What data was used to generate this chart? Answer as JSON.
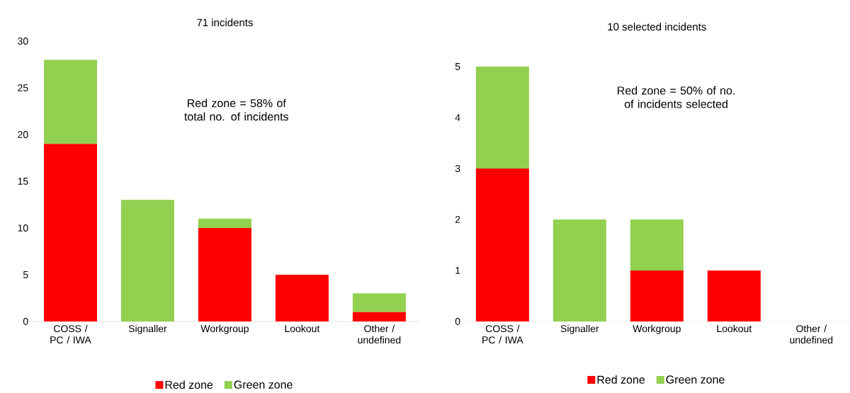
{
  "chart_data": [
    {
      "type": "bar",
      "title": "71 incidents",
      "stacked": true,
      "legend": "bottom",
      "categories": [
        "COSS / PC / IWA",
        "Signaller",
        "Workgroup",
        "Lookout",
        "Other / undefined"
      ],
      "ylim": [
        0,
        30
      ],
      "yticks": [
        0,
        5,
        10,
        15,
        20,
        25,
        30
      ],
      "annotations": [
        "Red zone = 58% of total no. of incidents"
      ],
      "series": [
        {
          "name": "Red zone",
          "color": "#ff0000",
          "values": [
            19,
            0,
            10,
            5,
            1
          ]
        },
        {
          "name": "Green zone",
          "color": "#92d050",
          "values": [
            9,
            13,
            1,
            0,
            2
          ]
        }
      ]
    },
    {
      "type": "bar",
      "title": "10 selected incidents",
      "stacked": true,
      "legend": "bottom",
      "categories": [
        "COSS / PC / IWA",
        "Signaller",
        "Workgroup",
        "Lookout",
        "Other / undefined"
      ],
      "ylim": [
        0,
        5
      ],
      "yticks": [
        0,
        1,
        2,
        3,
        4,
        5
      ],
      "annotations": [
        "Red zone = 50% of no. of incidents selected"
      ],
      "series": [
        {
          "name": "Red zone",
          "color": "#ff0000",
          "values": [
            3,
            0,
            1,
            1,
            0
          ]
        },
        {
          "name": "Green zone",
          "color": "#92d050",
          "values": [
            2,
            2,
            1,
            0,
            0
          ]
        }
      ]
    }
  ]
}
